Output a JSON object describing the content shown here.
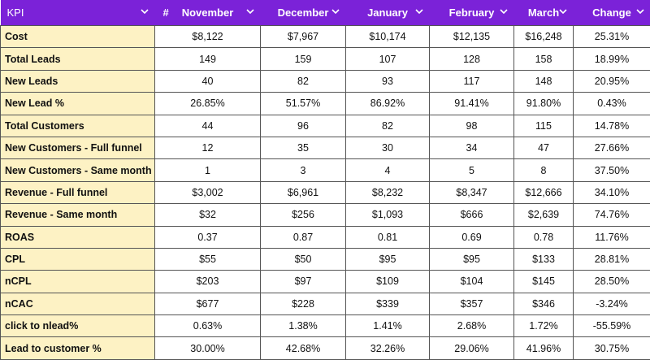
{
  "table": {
    "header": {
      "kpi": "KPI",
      "number_icon": "#",
      "columns": [
        "November",
        "December",
        "January",
        "February",
        "March",
        "Change"
      ]
    },
    "rows": [
      [
        "Cost",
        "$8,122",
        "$7,967",
        "$10,174",
        "$12,135",
        "$16,248",
        "25.31%"
      ],
      [
        "Total Leads",
        "149",
        "159",
        "107",
        "128",
        "158",
        "18.99%"
      ],
      [
        "New Leads",
        "40",
        "82",
        "93",
        "117",
        "148",
        "20.95%"
      ],
      [
        "New Lead %",
        "26.85%",
        "51.57%",
        "86.92%",
        "91.41%",
        "91.80%",
        "0.43%"
      ],
      [
        "Total Customers",
        "44",
        "96",
        "82",
        "98",
        "115",
        "14.78%"
      ],
      [
        "New Customers - Full funnel",
        "12",
        "35",
        "30",
        "34",
        "47",
        "27.66%"
      ],
      [
        "New Customers - Same month",
        "1",
        "3",
        "4",
        "5",
        "8",
        "37.50%"
      ],
      [
        "Revenue - Full funnel",
        "$3,002",
        "$6,961",
        "$8,232",
        "$8,347",
        "$12,666",
        "34.10%"
      ],
      [
        "Revenue - Same month",
        "$32",
        "$256",
        "$1,093",
        "$666",
        "$2,639",
        "74.76%"
      ],
      [
        "ROAS",
        "0.37",
        "0.87",
        "0.81",
        "0.69",
        "0.78",
        "11.76%"
      ],
      [
        "CPL",
        "$55",
        "$50",
        "$95",
        "$95",
        "$133",
        "28.81%"
      ],
      [
        "nCPL",
        "$203",
        "$97",
        "$109",
        "$104",
        "$145",
        "28.50%"
      ],
      [
        "nCAC",
        "$677",
        "$228",
        "$339",
        "$357",
        "$346",
        "-3.24%"
      ],
      [
        "click to nlead%",
        "0.63%",
        "1.38%",
        "1.41%",
        "2.68%",
        "1.72%",
        "-55.59%"
      ],
      [
        "Lead to customer %",
        "30.00%",
        "42.68%",
        "32.26%",
        "29.06%",
        "41.96%",
        "30.75%"
      ]
    ]
  }
}
